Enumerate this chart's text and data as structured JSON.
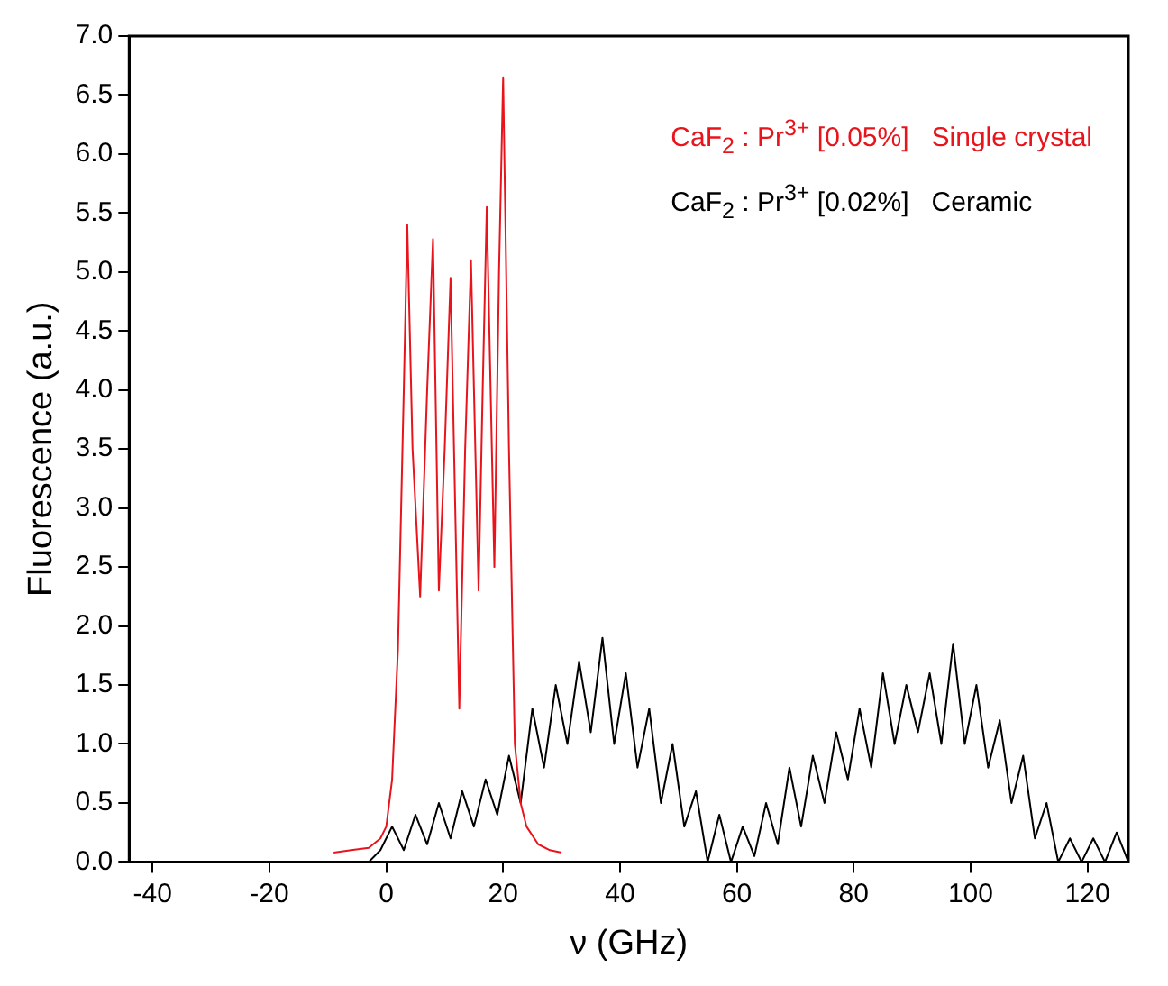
{
  "chart_data": {
    "type": "line",
    "xlabel": "ν (GHz)",
    "ylabel": "Fluorescence (a.u.)",
    "xlim": [
      -44,
      127
    ],
    "xticks": [
      -40,
      -20,
      0,
      20,
      40,
      60,
      80,
      100,
      120
    ],
    "ylim": [
      0,
      7
    ],
    "yticks": [
      {
        "value": 0,
        "label": "0.0"
      },
      0.5,
      {
        "value": 1,
        "label": "1.0"
      },
      1.5,
      {
        "value": 2,
        "label": "2.0"
      },
      2.5,
      {
        "value": 3,
        "label": "3.0"
      },
      3.5,
      {
        "value": 4,
        "label": "4.0"
      },
      4.5,
      {
        "value": 5,
        "label": "5.0"
      },
      5.5,
      {
        "value": 6,
        "label": "6.0"
      },
      6.5,
      {
        "value": 7,
        "label": "7.0"
      }
    ],
    "grid": false,
    "legend": "top right",
    "marker": "none",
    "line_style": "solid",
    "series": [
      {
        "name": "CaF$_{2}$ : Pr$^{3+}$ [0.05%]   Single crystal",
        "color": "#e8141c",
        "x": [
          -9,
          -6,
          -3,
          -1,
          0,
          1,
          2,
          3,
          3.6,
          4.5,
          5.8,
          7,
          8,
          9,
          10,
          11,
          12.5,
          13.5,
          14.5,
          15.8,
          16.5,
          17.2,
          18.5,
          19.3,
          20,
          21,
          22,
          23,
          24,
          26,
          28,
          30
        ],
        "values": [
          0.08,
          0.1,
          0.12,
          0.2,
          0.3,
          0.7,
          1.8,
          4.0,
          5.4,
          3.5,
          2.25,
          4.0,
          5.28,
          2.3,
          3.5,
          4.95,
          1.3,
          3.5,
          5.1,
          2.3,
          4.0,
          5.55,
          2.5,
          5.0,
          6.65,
          3.5,
          1.0,
          0.5,
          0.3,
          0.15,
          0.1,
          0.08
        ]
      },
      {
        "name": "CaF$_{2}$ : Pr$^{3+}$ [0.02%]   Ceramic",
        "color": "#000000",
        "x": [
          -3,
          -1,
          1,
          3,
          5,
          7,
          9,
          11,
          13,
          15,
          17,
          19,
          21,
          23,
          25,
          27,
          29,
          31,
          33,
          35,
          37,
          39,
          41,
          43,
          45,
          47,
          49,
          51,
          53,
          55,
          57,
          59,
          61,
          63,
          65,
          67,
          69,
          71,
          73,
          75,
          77,
          79,
          81,
          83,
          85,
          87,
          89,
          91,
          93,
          95,
          97,
          99,
          101,
          103,
          105,
          107,
          109,
          111,
          113,
          115,
          117,
          119,
          121,
          123,
          125,
          127
        ],
        "values": [
          0,
          0.1,
          0.3,
          0.1,
          0.4,
          0.15,
          0.5,
          0.2,
          0.6,
          0.3,
          0.7,
          0.4,
          0.9,
          0.5,
          1.3,
          0.8,
          1.5,
          1.0,
          1.7,
          1.1,
          1.9,
          1.0,
          1.6,
          0.8,
          1.3,
          0.5,
          1.0,
          0.3,
          0.6,
          0,
          0.4,
          0,
          0.3,
          0.05,
          0.5,
          0.15,
          0.8,
          0.3,
          0.9,
          0.5,
          1.1,
          0.7,
          1.3,
          0.8,
          1.6,
          1.0,
          1.5,
          1.1,
          1.6,
          1.0,
          1.85,
          1.0,
          1.5,
          0.8,
          1.2,
          0.5,
          0.9,
          0.2,
          0.5,
          0,
          0.2,
          0,
          0.2,
          0,
          0.25,
          0
        ]
      }
    ]
  }
}
